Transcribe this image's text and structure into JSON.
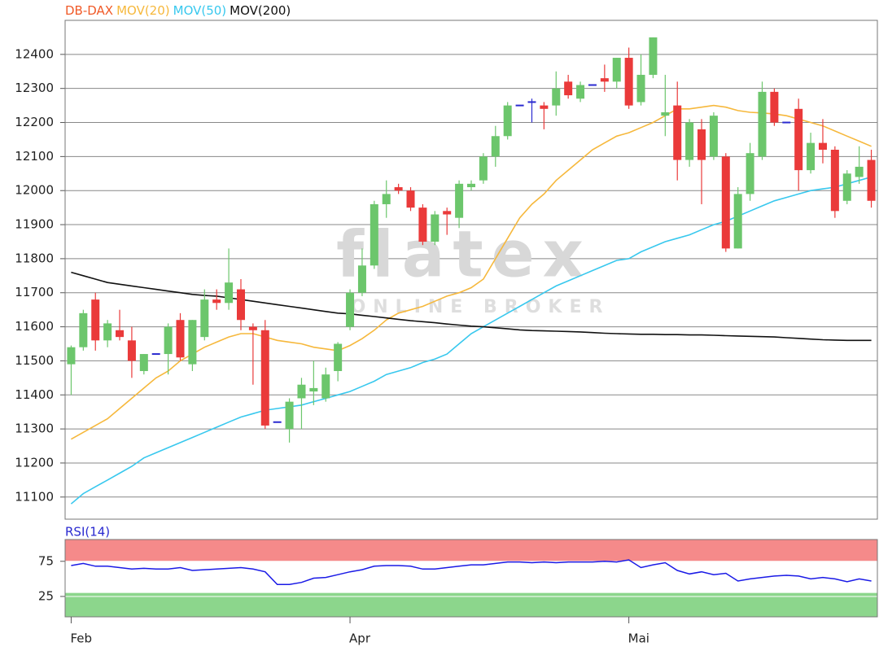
{
  "chart_data": [
    {
      "type": "candlestick",
      "legend": [
        {
          "name": "DB-DAX",
          "color": "#f05a28"
        }
      ],
      "watermark": {
        "logo": "flatex",
        "tagline": "ONLINE BROKER"
      },
      "categories": [
        "Feb",
        null,
        null,
        null,
        null,
        null,
        null,
        null,
        null,
        null,
        null,
        null,
        null,
        null,
        null,
        null,
        null,
        null,
        null,
        null,
        null,
        null,
        null,
        "Apr",
        null,
        null,
        null,
        null,
        null,
        null,
        null,
        null,
        null,
        null,
        null,
        null,
        null,
        null,
        null,
        null,
        null,
        null,
        null,
        null,
        null,
        null,
        "Mai",
        null,
        null,
        null,
        null,
        null,
        null,
        null,
        null,
        null,
        null,
        null,
        null,
        null,
        null,
        null,
        null,
        null,
        null,
        null,
        null
      ],
      "open": [
        11490,
        11540,
        11680,
        11560,
        11590,
        11560,
        11470,
        11520,
        11520,
        11620,
        11490,
        11570,
        11680,
        11670,
        11710,
        11600,
        11590,
        11320,
        11300,
        11390,
        11410,
        11390,
        11470,
        11600,
        11700,
        11780,
        11960,
        12010,
        12000,
        11950,
        11850,
        11940,
        11920,
        12010,
        12030,
        12100,
        12160,
        12250,
        12260,
        12250,
        12250,
        12320,
        12270,
        12310,
        12330,
        12320,
        12390,
        12260,
        12340,
        12220,
        12250,
        12090,
        12180,
        12100,
        12100,
        11830,
        11990,
        12100,
        12290,
        12200,
        12240,
        12060,
        12140,
        12120,
        11970,
        12040,
        12090
      ],
      "high": [
        11545,
        11650,
        11700,
        11620,
        11650,
        11600,
        11520,
        11520,
        11610,
        11640,
        11620,
        11710,
        11710,
        11830,
        11740,
        11610,
        11620,
        11320,
        11390,
        11450,
        11500,
        11480,
        11555,
        11710,
        11830,
        11970,
        12030,
        12020,
        12010,
        11960,
        11940,
        11950,
        12030,
        12030,
        12110,
        12190,
        12260,
        12250,
        12270,
        12260,
        12350,
        12340,
        12320,
        12310,
        12370,
        12390,
        12420,
        12400,
        12450,
        12340,
        12320,
        12210,
        12210,
        12230,
        12110,
        12010,
        12140,
        12320,
        12300,
        12200,
        12270,
        12170,
        12210,
        12130,
        12060,
        12130,
        12120
      ],
      "low": [
        11400,
        11530,
        11530,
        11540,
        11560,
        11450,
        11460,
        11520,
        11460,
        11500,
        11470,
        11560,
        11650,
        11650,
        11590,
        11430,
        11300,
        11320,
        11260,
        11300,
        11370,
        11380,
        11440,
        11590,
        11690,
        11770,
        11920,
        11990,
        11940,
        11840,
        11840,
        11870,
        11890,
        12000,
        12020,
        12070,
        12150,
        12250,
        12200,
        12180,
        12220,
        12270,
        12260,
        12310,
        12290,
        12300,
        12240,
        12250,
        12330,
        12160,
        12030,
        12070,
        11960,
        12090,
        11820,
        11830,
        11970,
        12090,
        12190,
        12200,
        12000,
        12050,
        12080,
        11920,
        11960,
        12020,
        11950
      ],
      "close": [
        11540,
        11640,
        11560,
        11610,
        11570,
        11500,
        11520,
        11520,
        11600,
        11510,
        11620,
        11680,
        11670,
        11730,
        11620,
        11590,
        11310,
        11320,
        11380,
        11430,
        11420,
        11460,
        11550,
        11700,
        11780,
        11960,
        11990,
        12000,
        11950,
        11850,
        11930,
        11930,
        12020,
        12020,
        12100,
        12160,
        12250,
        12250,
        12260,
        12240,
        12300,
        12280,
        12310,
        12310,
        12320,
        12390,
        12250,
        12340,
        12450,
        12230,
        12090,
        12200,
        12090,
        12220,
        11830,
        11990,
        12110,
        12290,
        12200,
        12200,
        12060,
        12140,
        12120,
        11940,
        12050,
        12070,
        11970
      ],
      "up_color": "#6cc66c",
      "down_color": "#ea3a3a",
      "flat_color": "#2a2ad0",
      "series": [
        {
          "name": "MOV(20)",
          "color": "#f6b83c",
          "values": [
            11270,
            11290,
            11310,
            11330,
            11360,
            11390,
            11420,
            11450,
            11470,
            11500,
            11520,
            11540,
            11555,
            11570,
            11580,
            11580,
            11570,
            11560,
            11555,
            11550,
            11540,
            11535,
            11530,
            11545,
            11565,
            11590,
            11620,
            11640,
            11650,
            11660,
            11675,
            11690,
            11700,
            11715,
            11740,
            11800,
            11860,
            11920,
            11960,
            11990,
            12030,
            12060,
            12090,
            12120,
            12140,
            12160,
            12170,
            12185,
            12200,
            12220,
            12240,
            12240,
            12245,
            12250,
            12245,
            12235,
            12230,
            12228,
            12225,
            12220,
            12210,
            12200,
            12190,
            12175,
            12160,
            12145,
            12130
          ]
        },
        {
          "name": "MOV(50)",
          "color": "#38c8ee",
          "values": [
            11080,
            11110,
            11130,
            11150,
            11170,
            11190,
            11215,
            11230,
            11245,
            11260,
            11275,
            11290,
            11305,
            11320,
            11335,
            11345,
            11355,
            11360,
            11365,
            11370,
            11380,
            11390,
            11400,
            11410,
            11425,
            11440,
            11460,
            11470,
            11480,
            11495,
            11505,
            11520,
            11550,
            11580,
            11600,
            11620,
            11640,
            11660,
            11680,
            11700,
            11720,
            11735,
            11750,
            11765,
            11780,
            11795,
            11800,
            11820,
            11835,
            11850,
            11860,
            11870,
            11885,
            11900,
            11910,
            11925,
            11940,
            11955,
            11970,
            11980,
            11990,
            12000,
            12005,
            12010,
            12020,
            12030,
            12040
          ]
        },
        {
          "name": "MOV(200)",
          "color": "#111111",
          "values": [
            11760,
            11750,
            11740,
            11730,
            11725,
            11720,
            11715,
            11710,
            11705,
            11700,
            11695,
            11692,
            11690,
            11685,
            11680,
            11675,
            11670,
            11665,
            11660,
            11655,
            11650,
            11645,
            11640,
            11638,
            11634,
            11630,
            11626,
            11622,
            11618,
            11615,
            11612,
            11608,
            11605,
            11602,
            11600,
            11597,
            11594,
            11591,
            11589,
            11588,
            11587,
            11586,
            11585,
            11583,
            11581,
            11580,
            11579,
            11578,
            11578,
            11577,
            11577,
            11576,
            11576,
            11575,
            11574,
            11573,
            11572,
            11571,
            11570,
            11568,
            11566,
            11564,
            11562,
            11561,
            11560,
            11560,
            11560
          ]
        }
      ],
      "ylim": [
        11035,
        12500
      ],
      "yticks": [
        11100,
        11200,
        11300,
        11400,
        11500,
        11600,
        11700,
        11800,
        11900,
        12000,
        12100,
        12200,
        12300,
        12400
      ],
      "grid": true
    },
    {
      "type": "line",
      "title": "RSI(14)",
      "color": "#1a1ae6",
      "values": [
        69,
        72,
        68,
        68,
        66,
        64,
        65,
        64,
        64,
        66,
        62,
        63,
        64,
        65,
        66,
        64,
        60,
        42,
        42,
        45,
        51,
        52,
        56,
        60,
        63,
        68,
        69,
        69,
        68,
        64,
        64,
        66,
        68,
        70,
        70,
        72,
        74,
        74,
        73,
        74,
        73,
        74,
        74,
        74,
        75,
        74,
        77,
        66,
        70,
        73,
        62,
        57,
        60,
        56,
        58,
        47,
        50,
        52,
        54,
        55,
        54,
        50,
        52,
        50,
        46,
        50,
        47
      ],
      "bands": [
        {
          "from": 75,
          "to": 106,
          "color": "#f58a8a"
        },
        {
          "from": -4,
          "to": 30,
          "color": "#8cd68c"
        }
      ],
      "ylim": [
        -4,
        106
      ],
      "yticks": [
        25,
        75
      ],
      "grid": true
    }
  ]
}
